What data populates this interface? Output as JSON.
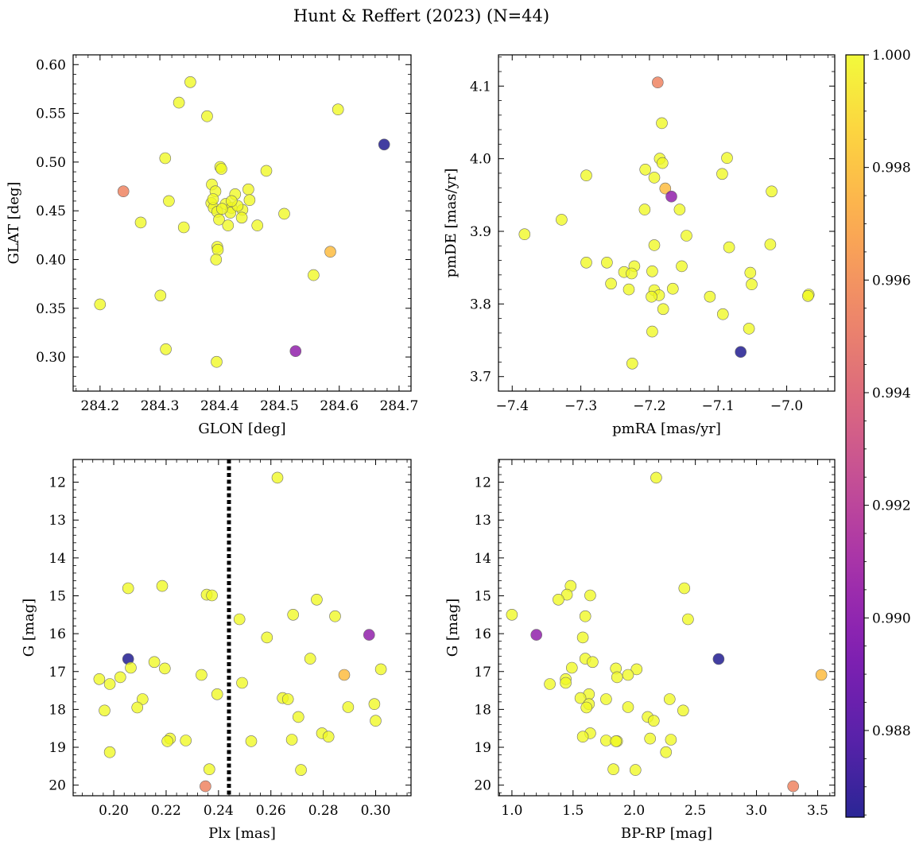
{
  "figure": {
    "title": "Hunt & Reffert (2023) (N=44)"
  },
  "colormap": {
    "name": "plasma",
    "stops": [
      "#0d0887",
      "#46039f",
      "#7201a8",
      "#9c179e",
      "#bd3786",
      "#d8576b",
      "#ed7953",
      "#fb9f3a",
      "#fdca26",
      "#f0f921"
    ],
    "marker_alpha": 0.78
  },
  "colorbar": {
    "vmin": 0.98646,
    "vmax": 1.0,
    "ticks": [
      "0.988",
      "0.990",
      "0.992",
      "0.994",
      "0.996",
      "0.998",
      "1.000"
    ],
    "tick_values": [
      0.988,
      0.99,
      0.992,
      0.994,
      0.996,
      0.998,
      1.0
    ]
  },
  "chart_data": [
    {
      "type": "scatter",
      "xlabel": "GLON [deg]",
      "ylabel": "GLAT [deg]",
      "xlim": [
        284.155,
        284.72
      ],
      "ylim": [
        0.265,
        0.61
      ],
      "y_inverted": false,
      "xticks": [
        "284.2",
        "284.3",
        "284.4",
        "284.5",
        "284.6",
        "284.7"
      ],
      "xtick_values": [
        284.2,
        284.3,
        284.4,
        284.5,
        284.6,
        284.7
      ],
      "yticks": [
        "0.30",
        "0.35",
        "0.40",
        "0.45",
        "0.50",
        "0.55",
        "0.60"
      ],
      "ytick_values": [
        0.3,
        0.35,
        0.4,
        0.45,
        0.5,
        0.55,
        0.6
      ],
      "vline": null,
      "points": [
        {
          "x": 284.351,
          "y": 0.582,
          "c": 1.0
        },
        {
          "x": 284.332,
          "y": 0.561,
          "c": 1.0
        },
        {
          "x": 284.379,
          "y": 0.547,
          "c": 1.0
        },
        {
          "x": 284.598,
          "y": 0.554,
          "c": 1.0
        },
        {
          "x": 284.675,
          "y": 0.518,
          "c": 0.98646
        },
        {
          "x": 284.309,
          "y": 0.504,
          "c": 1.0
        },
        {
          "x": 284.401,
          "y": 0.495,
          "c": 1.0
        },
        {
          "x": 284.403,
          "y": 0.493,
          "c": 1.0
        },
        {
          "x": 284.478,
          "y": 0.491,
          "c": 1.0
        },
        {
          "x": 284.387,
          "y": 0.477,
          "c": 1.0
        },
        {
          "x": 284.393,
          "y": 0.47,
          "c": 1.0
        },
        {
          "x": 284.426,
          "y": 0.467,
          "c": 1.0
        },
        {
          "x": 284.448,
          "y": 0.472,
          "c": 0.9999
        },
        {
          "x": 284.239,
          "y": 0.47,
          "c": 0.9955
        },
        {
          "x": 284.315,
          "y": 0.46,
          "c": 1.0
        },
        {
          "x": 284.386,
          "y": 0.458,
          "c": 1.0
        },
        {
          "x": 284.41,
          "y": 0.457,
          "c": 1.0
        },
        {
          "x": 284.45,
          "y": 0.461,
          "c": 1.0
        },
        {
          "x": 284.39,
          "y": 0.453,
          "c": 1.0
        },
        {
          "x": 284.42,
          "y": 0.453,
          "c": 1.0
        },
        {
          "x": 284.396,
          "y": 0.449,
          "c": 1.0
        },
        {
          "x": 284.418,
          "y": 0.448,
          "c": 1.0
        },
        {
          "x": 284.438,
          "y": 0.451,
          "c": 1.0
        },
        {
          "x": 284.508,
          "y": 0.447,
          "c": 1.0
        },
        {
          "x": 284.437,
          "y": 0.443,
          "c": 1.0
        },
        {
          "x": 284.399,
          "y": 0.441,
          "c": 1.0
        },
        {
          "x": 284.268,
          "y": 0.438,
          "c": 1.0
        },
        {
          "x": 284.414,
          "y": 0.435,
          "c": 1.0
        },
        {
          "x": 284.463,
          "y": 0.435,
          "c": 1.0
        },
        {
          "x": 284.34,
          "y": 0.433,
          "c": 1.0
        },
        {
          "x": 284.396,
          "y": 0.413,
          "c": 1.0
        },
        {
          "x": 284.397,
          "y": 0.41,
          "c": 1.0
        },
        {
          "x": 284.585,
          "y": 0.408,
          "c": 0.9978
        },
        {
          "x": 284.394,
          "y": 0.4,
          "c": 1.0
        },
        {
          "x": 284.557,
          "y": 0.384,
          "c": 1.0
        },
        {
          "x": 284.301,
          "y": 0.363,
          "c": 1.0
        },
        {
          "x": 284.2,
          "y": 0.354,
          "c": 1.0
        },
        {
          "x": 284.31,
          "y": 0.308,
          "c": 1.0
        },
        {
          "x": 284.527,
          "y": 0.306,
          "c": 0.9902
        },
        {
          "x": 284.395,
          "y": 0.295,
          "c": 1.0
        },
        {
          "x": 284.404,
          "y": 0.452,
          "c": 1.0
        },
        {
          "x": 284.43,
          "y": 0.455,
          "c": 1.0
        },
        {
          "x": 284.42,
          "y": 0.46,
          "c": 1.0
        },
        {
          "x": 284.389,
          "y": 0.462,
          "c": 1.0
        }
      ]
    },
    {
      "type": "scatter",
      "xlabel": "pmRA [mas/yr]",
      "ylabel": "pmDE [mas/yr]",
      "xlim": [
        -7.42,
        -6.93
      ],
      "ylim": [
        3.68,
        4.143
      ],
      "y_inverted": false,
      "xticks": [
        "−7.4",
        "−7.3",
        "−7.2",
        "−7.1",
        "−7.0"
      ],
      "xtick_values": [
        -7.4,
        -7.3,
        -7.2,
        -7.1,
        -7.0
      ],
      "yticks": [
        "3.7",
        "3.8",
        "3.9",
        "4.0",
        "4.1"
      ],
      "ytick_values": [
        3.7,
        3.8,
        3.9,
        4.0,
        4.1
      ],
      "vline": null,
      "points": [
        {
          "x": -7.188,
          "y": 4.105,
          "c": 0.9955
        },
        {
          "x": -7.182,
          "y": 4.049,
          "c": 1.0
        },
        {
          "x": -7.185,
          "y": 4.0,
          "c": 1.0
        },
        {
          "x": -7.087,
          "y": 4.001,
          "c": 1.0
        },
        {
          "x": -7.181,
          "y": 3.994,
          "c": 1.0
        },
        {
          "x": -7.206,
          "y": 3.985,
          "c": 1.0
        },
        {
          "x": -7.094,
          "y": 3.979,
          "c": 1.0
        },
        {
          "x": -7.292,
          "y": 3.977,
          "c": 1.0
        },
        {
          "x": -7.193,
          "y": 3.974,
          "c": 1.0
        },
        {
          "x": -7.177,
          "y": 3.959,
          "c": 0.9978
        },
        {
          "x": -7.168,
          "y": 3.948,
          "c": 0.9902
        },
        {
          "x": -7.022,
          "y": 3.955,
          "c": 1.0
        },
        {
          "x": -7.207,
          "y": 3.93,
          "c": 1.0
        },
        {
          "x": -7.156,
          "y": 3.93,
          "c": 1.0
        },
        {
          "x": -7.328,
          "y": 3.916,
          "c": 1.0
        },
        {
          "x": -7.382,
          "y": 3.896,
          "c": 1.0
        },
        {
          "x": -7.146,
          "y": 3.894,
          "c": 1.0
        },
        {
          "x": -7.193,
          "y": 3.881,
          "c": 1.0
        },
        {
          "x": -7.024,
          "y": 3.882,
          "c": 1.0
        },
        {
          "x": -7.084,
          "y": 3.878,
          "c": 1.0
        },
        {
          "x": -7.292,
          "y": 3.857,
          "c": 1.0
        },
        {
          "x": -7.262,
          "y": 3.857,
          "c": 1.0
        },
        {
          "x": -7.222,
          "y": 3.852,
          "c": 1.0
        },
        {
          "x": -7.153,
          "y": 3.852,
          "c": 1.0
        },
        {
          "x": -7.237,
          "y": 3.844,
          "c": 1.0
        },
        {
          "x": -7.226,
          "y": 3.842,
          "c": 1.0
        },
        {
          "x": -7.196,
          "y": 3.845,
          "c": 1.0
        },
        {
          "x": -7.053,
          "y": 3.843,
          "c": 1.0
        },
        {
          "x": -7.256,
          "y": 3.828,
          "c": 1.0
        },
        {
          "x": -7.051,
          "y": 3.827,
          "c": 1.0
        },
        {
          "x": -7.23,
          "y": 3.82,
          "c": 1.0
        },
        {
          "x": -7.193,
          "y": 3.819,
          "c": 1.0
        },
        {
          "x": -7.166,
          "y": 3.821,
          "c": 1.0
        },
        {
          "x": -7.186,
          "y": 3.812,
          "c": 1.0
        },
        {
          "x": -7.197,
          "y": 3.81,
          "c": 1.0
        },
        {
          "x": -7.112,
          "y": 3.81,
          "c": 1.0
        },
        {
          "x": -6.968,
          "y": 3.813,
          "c": 1.0
        },
        {
          "x": -6.969,
          "y": 3.811,
          "c": 1.0
        },
        {
          "x": -7.18,
          "y": 3.793,
          "c": 1.0
        },
        {
          "x": -7.093,
          "y": 3.786,
          "c": 1.0
        },
        {
          "x": -7.055,
          "y": 3.766,
          "c": 1.0
        },
        {
          "x": -7.196,
          "y": 3.762,
          "c": 1.0
        },
        {
          "x": -7.067,
          "y": 3.734,
          "c": 0.98646
        },
        {
          "x": -7.225,
          "y": 3.718,
          "c": 1.0
        }
      ]
    },
    {
      "type": "scatter",
      "xlabel": "Plx [mas]",
      "ylabel": "G [mag]",
      "xlim": [
        0.1845,
        0.3135
      ],
      "ylim": [
        20.28,
        11.4
      ],
      "y_inverted": true,
      "xticks": [
        "0.20",
        "0.22",
        "0.24",
        "0.26",
        "0.28",
        "0.30"
      ],
      "xtick_values": [
        0.2,
        0.22,
        0.24,
        0.26,
        0.28,
        0.3
      ],
      "yticks": [
        "12",
        "13",
        "14",
        "15",
        "16",
        "17",
        "18",
        "19",
        "20"
      ],
      "ytick_values": [
        12,
        13,
        14,
        15,
        16,
        17,
        18,
        19,
        20
      ],
      "vline": 0.244,
      "points": [
        {
          "x": 0.2625,
          "y": 11.88,
          "c": 1.0
        },
        {
          "x": 0.2185,
          "y": 14.74,
          "c": 1.0
        },
        {
          "x": 0.2055,
          "y": 14.8,
          "c": 1.0
        },
        {
          "x": 0.2355,
          "y": 14.97,
          "c": 1.0
        },
        {
          "x": 0.2375,
          "y": 14.99,
          "c": 1.0
        },
        {
          "x": 0.2775,
          "y": 15.1,
          "c": 1.0
        },
        {
          "x": 0.2685,
          "y": 15.5,
          "c": 1.0
        },
        {
          "x": 0.2845,
          "y": 15.54,
          "c": 1.0
        },
        {
          "x": 0.248,
          "y": 15.62,
          "c": 1.0
        },
        {
          "x": 0.2975,
          "y": 16.03,
          "c": 0.9902
        },
        {
          "x": 0.2585,
          "y": 16.1,
          "c": 1.0
        },
        {
          "x": 0.2055,
          "y": 16.67,
          "c": 0.98646
        },
        {
          "x": 0.275,
          "y": 16.66,
          "c": 1.0
        },
        {
          "x": 0.2155,
          "y": 16.75,
          "c": 1.0
        },
        {
          "x": 0.2195,
          "y": 16.92,
          "c": 1.0
        },
        {
          "x": 0.2065,
          "y": 16.9,
          "c": 1.0
        },
        {
          "x": 0.302,
          "y": 16.94,
          "c": 1.0
        },
        {
          "x": 0.2335,
          "y": 17.09,
          "c": 1.0
        },
        {
          "x": 0.288,
          "y": 17.09,
          "c": 0.9978
        },
        {
          "x": 0.2025,
          "y": 17.15,
          "c": 1.0
        },
        {
          "x": 0.1945,
          "y": 17.2,
          "c": 1.0
        },
        {
          "x": 0.1985,
          "y": 17.33,
          "c": 1.0
        },
        {
          "x": 0.249,
          "y": 17.3,
          "c": 1.0
        },
        {
          "x": 0.2395,
          "y": 17.6,
          "c": 1.0
        },
        {
          "x": 0.2645,
          "y": 17.7,
          "c": 1.0
        },
        {
          "x": 0.2665,
          "y": 17.73,
          "c": 1.0
        },
        {
          "x": 0.211,
          "y": 17.73,
          "c": 1.0
        },
        {
          "x": 0.2995,
          "y": 17.86,
          "c": 1.0
        },
        {
          "x": 0.209,
          "y": 17.95,
          "c": 1.0
        },
        {
          "x": 0.2895,
          "y": 17.94,
          "c": 1.0
        },
        {
          "x": 0.1965,
          "y": 18.03,
          "c": 1.0
        },
        {
          "x": 0.2705,
          "y": 18.2,
          "c": 1.0
        },
        {
          "x": 0.3,
          "y": 18.3,
          "c": 1.0
        },
        {
          "x": 0.2795,
          "y": 18.63,
          "c": 1.0
        },
        {
          "x": 0.282,
          "y": 18.72,
          "c": 1.0
        },
        {
          "x": 0.2215,
          "y": 18.77,
          "c": 1.0
        },
        {
          "x": 0.2205,
          "y": 18.84,
          "c": 1.0
        },
        {
          "x": 0.2275,
          "y": 18.82,
          "c": 1.0
        },
        {
          "x": 0.268,
          "y": 18.8,
          "c": 1.0
        },
        {
          "x": 0.2525,
          "y": 18.84,
          "c": 1.0
        },
        {
          "x": 0.1985,
          "y": 19.13,
          "c": 1.0
        },
        {
          "x": 0.2365,
          "y": 19.58,
          "c": 1.0
        },
        {
          "x": 0.2715,
          "y": 19.6,
          "c": 1.0
        },
        {
          "x": 0.235,
          "y": 20.03,
          "c": 0.9955
        }
      ]
    },
    {
      "type": "scatter",
      "xlabel": "BP-RP [mag]",
      "ylabel": "G [mag]",
      "xlim": [
        0.89,
        3.64
      ],
      "ylim": [
        20.28,
        11.4
      ],
      "y_inverted": true,
      "xticks": [
        "1.0",
        "1.5",
        "2.0",
        "2.5",
        "3.0",
        "3.5"
      ],
      "xtick_values": [
        1.0,
        1.5,
        2.0,
        2.5,
        3.0,
        3.5
      ],
      "yticks": [
        "12",
        "13",
        "14",
        "15",
        "16",
        "17",
        "18",
        "19",
        "20"
      ],
      "ytick_values": [
        12,
        13,
        14,
        15,
        16,
        17,
        18,
        19,
        20
      ],
      "vline": null,
      "points": [
        {
          "x": 2.18,
          "y": 11.88,
          "c": 1.0
        },
        {
          "x": 1.48,
          "y": 14.74,
          "c": 1.0
        },
        {
          "x": 2.41,
          "y": 14.8,
          "c": 1.0
        },
        {
          "x": 1.45,
          "y": 14.97,
          "c": 1.0
        },
        {
          "x": 1.64,
          "y": 14.99,
          "c": 1.0
        },
        {
          "x": 1.38,
          "y": 15.1,
          "c": 1.0
        },
        {
          "x": 1.0,
          "y": 15.5,
          "c": 1.0
        },
        {
          "x": 1.6,
          "y": 15.54,
          "c": 1.0
        },
        {
          "x": 2.44,
          "y": 15.62,
          "c": 1.0
        },
        {
          "x": 1.2,
          "y": 16.03,
          "c": 0.9902
        },
        {
          "x": 1.58,
          "y": 16.1,
          "c": 1.0
        },
        {
          "x": 2.69,
          "y": 16.67,
          "c": 0.98646
        },
        {
          "x": 1.6,
          "y": 16.66,
          "c": 1.0
        },
        {
          "x": 1.66,
          "y": 16.75,
          "c": 1.0
        },
        {
          "x": 1.85,
          "y": 16.92,
          "c": 1.0
        },
        {
          "x": 1.49,
          "y": 16.9,
          "c": 1.0
        },
        {
          "x": 2.02,
          "y": 16.94,
          "c": 1.0
        },
        {
          "x": 1.95,
          "y": 17.09,
          "c": 1.0
        },
        {
          "x": 3.53,
          "y": 17.09,
          "c": 0.9978
        },
        {
          "x": 1.86,
          "y": 17.15,
          "c": 1.0
        },
        {
          "x": 1.44,
          "y": 17.2,
          "c": 1.0
        },
        {
          "x": 1.31,
          "y": 17.33,
          "c": 1.0
        },
        {
          "x": 1.44,
          "y": 17.3,
          "c": 1.0
        },
        {
          "x": 1.63,
          "y": 17.6,
          "c": 1.0
        },
        {
          "x": 1.56,
          "y": 17.7,
          "c": 1.0
        },
        {
          "x": 1.77,
          "y": 17.73,
          "c": 1.0
        },
        {
          "x": 2.29,
          "y": 17.73,
          "c": 1.0
        },
        {
          "x": 1.63,
          "y": 17.86,
          "c": 1.0
        },
        {
          "x": 1.61,
          "y": 17.95,
          "c": 1.0
        },
        {
          "x": 1.95,
          "y": 17.94,
          "c": 1.0
        },
        {
          "x": 2.4,
          "y": 18.03,
          "c": 1.0
        },
        {
          "x": 2.11,
          "y": 18.2,
          "c": 1.0
        },
        {
          "x": 2.16,
          "y": 18.3,
          "c": 1.0
        },
        {
          "x": 1.64,
          "y": 18.63,
          "c": 1.0
        },
        {
          "x": 1.58,
          "y": 18.72,
          "c": 1.0
        },
        {
          "x": 2.13,
          "y": 18.77,
          "c": 1.0
        },
        {
          "x": 1.86,
          "y": 18.84,
          "c": 1.0
        },
        {
          "x": 1.77,
          "y": 18.82,
          "c": 1.0
        },
        {
          "x": 2.3,
          "y": 18.8,
          "c": 1.0
        },
        {
          "x": 1.85,
          "y": 18.84,
          "c": 1.0
        },
        {
          "x": 2.26,
          "y": 19.13,
          "c": 1.0
        },
        {
          "x": 1.83,
          "y": 19.58,
          "c": 1.0
        },
        {
          "x": 2.01,
          "y": 19.6,
          "c": 1.0
        },
        {
          "x": 3.3,
          "y": 20.03,
          "c": 0.9955
        }
      ]
    }
  ]
}
